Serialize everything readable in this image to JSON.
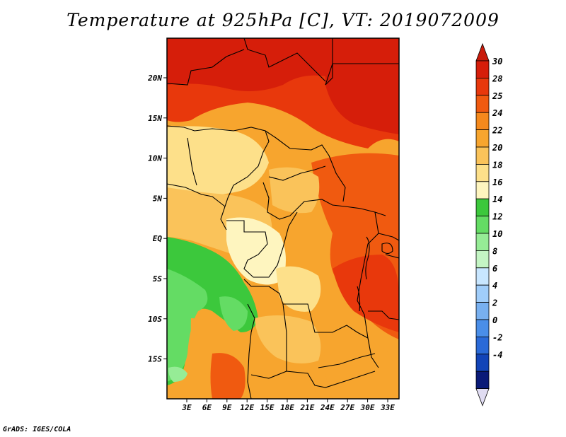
{
  "title": "Temperature at 925hPa [C], VT: 2019072009",
  "footer": "GrADS: IGES/COLA",
  "map": {
    "lon_labels": [
      "3E",
      "6E",
      "9E",
      "12E",
      "15E",
      "18E",
      "21E",
      "24E",
      "27E",
      "30E",
      "33E"
    ],
    "lat_labels": [
      "20N",
      "15N",
      "10N",
      "5N",
      "EQ",
      "5S",
      "10S",
      "15S"
    ]
  },
  "colorbar": {
    "labels": [
      "30",
      "28",
      "25",
      "24",
      "22",
      "20",
      "18",
      "16",
      "14",
      "12",
      "10",
      "8",
      "6",
      "4",
      "2",
      "0",
      "-2",
      "-4"
    ],
    "colors": [
      "#d61e0a",
      "#e8380c",
      "#f05a10",
      "#f5891c",
      "#f7a52e",
      "#fac35a",
      "#fde08a",
      "#fef5bf",
      "#3cc83c",
      "#64dc64",
      "#96ec96",
      "#c4f5c4",
      "#c8e6ff",
      "#a0cdfa",
      "#78b0f0",
      "#4a8ee8",
      "#2a6ad8",
      "#1244b8",
      "#0a1a78"
    ],
    "top_triangle_color": "#c81a0a",
    "bottom_triangle_color": "#e0dcf2"
  }
}
